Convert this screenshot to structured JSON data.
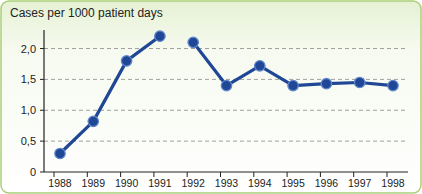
{
  "chart_data": {
    "type": "line",
    "title": "Cases per 1000 patient days",
    "categories": [
      "1988",
      "1989",
      "1990",
      "1991",
      "1992",
      "1993",
      "1994",
      "1995",
      "1996",
      "1997",
      "1998"
    ],
    "series": [
      {
        "color": "#1f4796",
        "marker": "circle",
        "values": [
          0.3,
          0.82,
          1.8,
          2.2,
          null,
          null,
          null,
          null,
          null,
          null,
          null
        ]
      },
      {
        "color": "#1f4796",
        "marker": "circle",
        "values": [
          null,
          null,
          null,
          null,
          2.1,
          1.4,
          1.72,
          1.4,
          1.43,
          1.45,
          1.4
        ]
      }
    ],
    "ylim": [
      0,
      2.3
    ],
    "yticks": [
      0,
      {
        "value": 0.5,
        "label": "0,5"
      },
      {
        "value": 1,
        "label": "1,0"
      },
      {
        "value": 1.5,
        "label": "1,5"
      },
      {
        "value": 2,
        "label": "2,0"
      }
    ],
    "grid": true
  }
}
